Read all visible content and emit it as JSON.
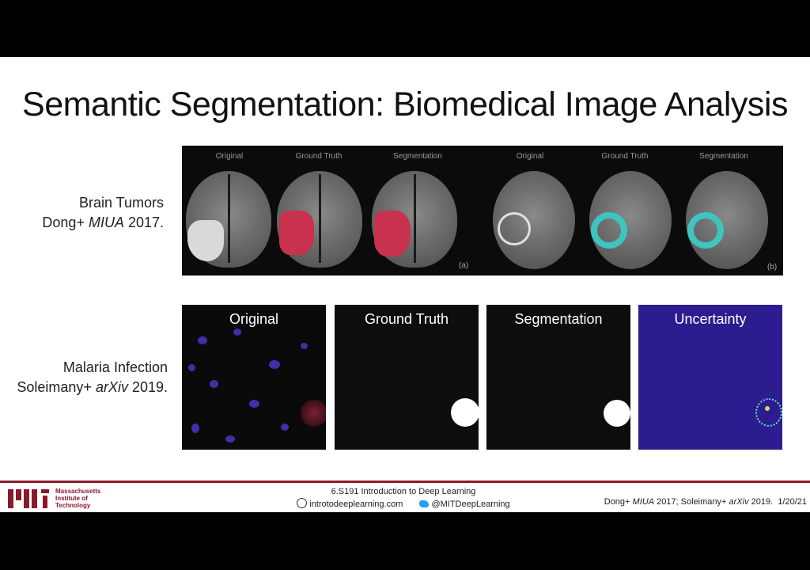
{
  "title": "Semantic Segmentation: Biomedical Image Analysis",
  "rows": [
    {
      "label_line1": "Brain Tumors",
      "label_line2_prefix": "Dong+ ",
      "label_line2_italic": "MIUA",
      "label_line2_suffix": " 2017.",
      "captions": [
        "Original",
        "Ground Truth",
        "Segmentation",
        "Original",
        "Ground Truth",
        "Segmentation"
      ],
      "tags": [
        "(a)",
        "(b)"
      ]
    },
    {
      "label_line1": "Malaria Infection",
      "label_line2_prefix": "Soleimany+ ",
      "label_line2_italic": "arXiv",
      "label_line2_suffix": " 2019.",
      "captions": [
        "Original",
        "Ground Truth",
        "Segmentation",
        "Uncertainty"
      ]
    }
  ],
  "footer": {
    "institute": [
      "Massachusetts",
      "Institute of",
      "Technology"
    ],
    "course": "6.S191 Introduction to Deep Learning",
    "website": "introtodeeplearning.com",
    "twitter": "@MITDeepLearning",
    "citation_prefix": "Dong+ ",
    "citation_italic1": "MIUA",
    "citation_mid": " 2017; Soleimany+ ",
    "citation_italic2": "arXiv",
    "citation_suffix": " 2019.",
    "date": "1/20/21"
  },
  "colors": {
    "tumor_label": "#c8324e",
    "tumor_edge": "#3fc4c0",
    "uncertainty_bg": "#2b1c8f",
    "mit_red": "#8a1a2a"
  }
}
